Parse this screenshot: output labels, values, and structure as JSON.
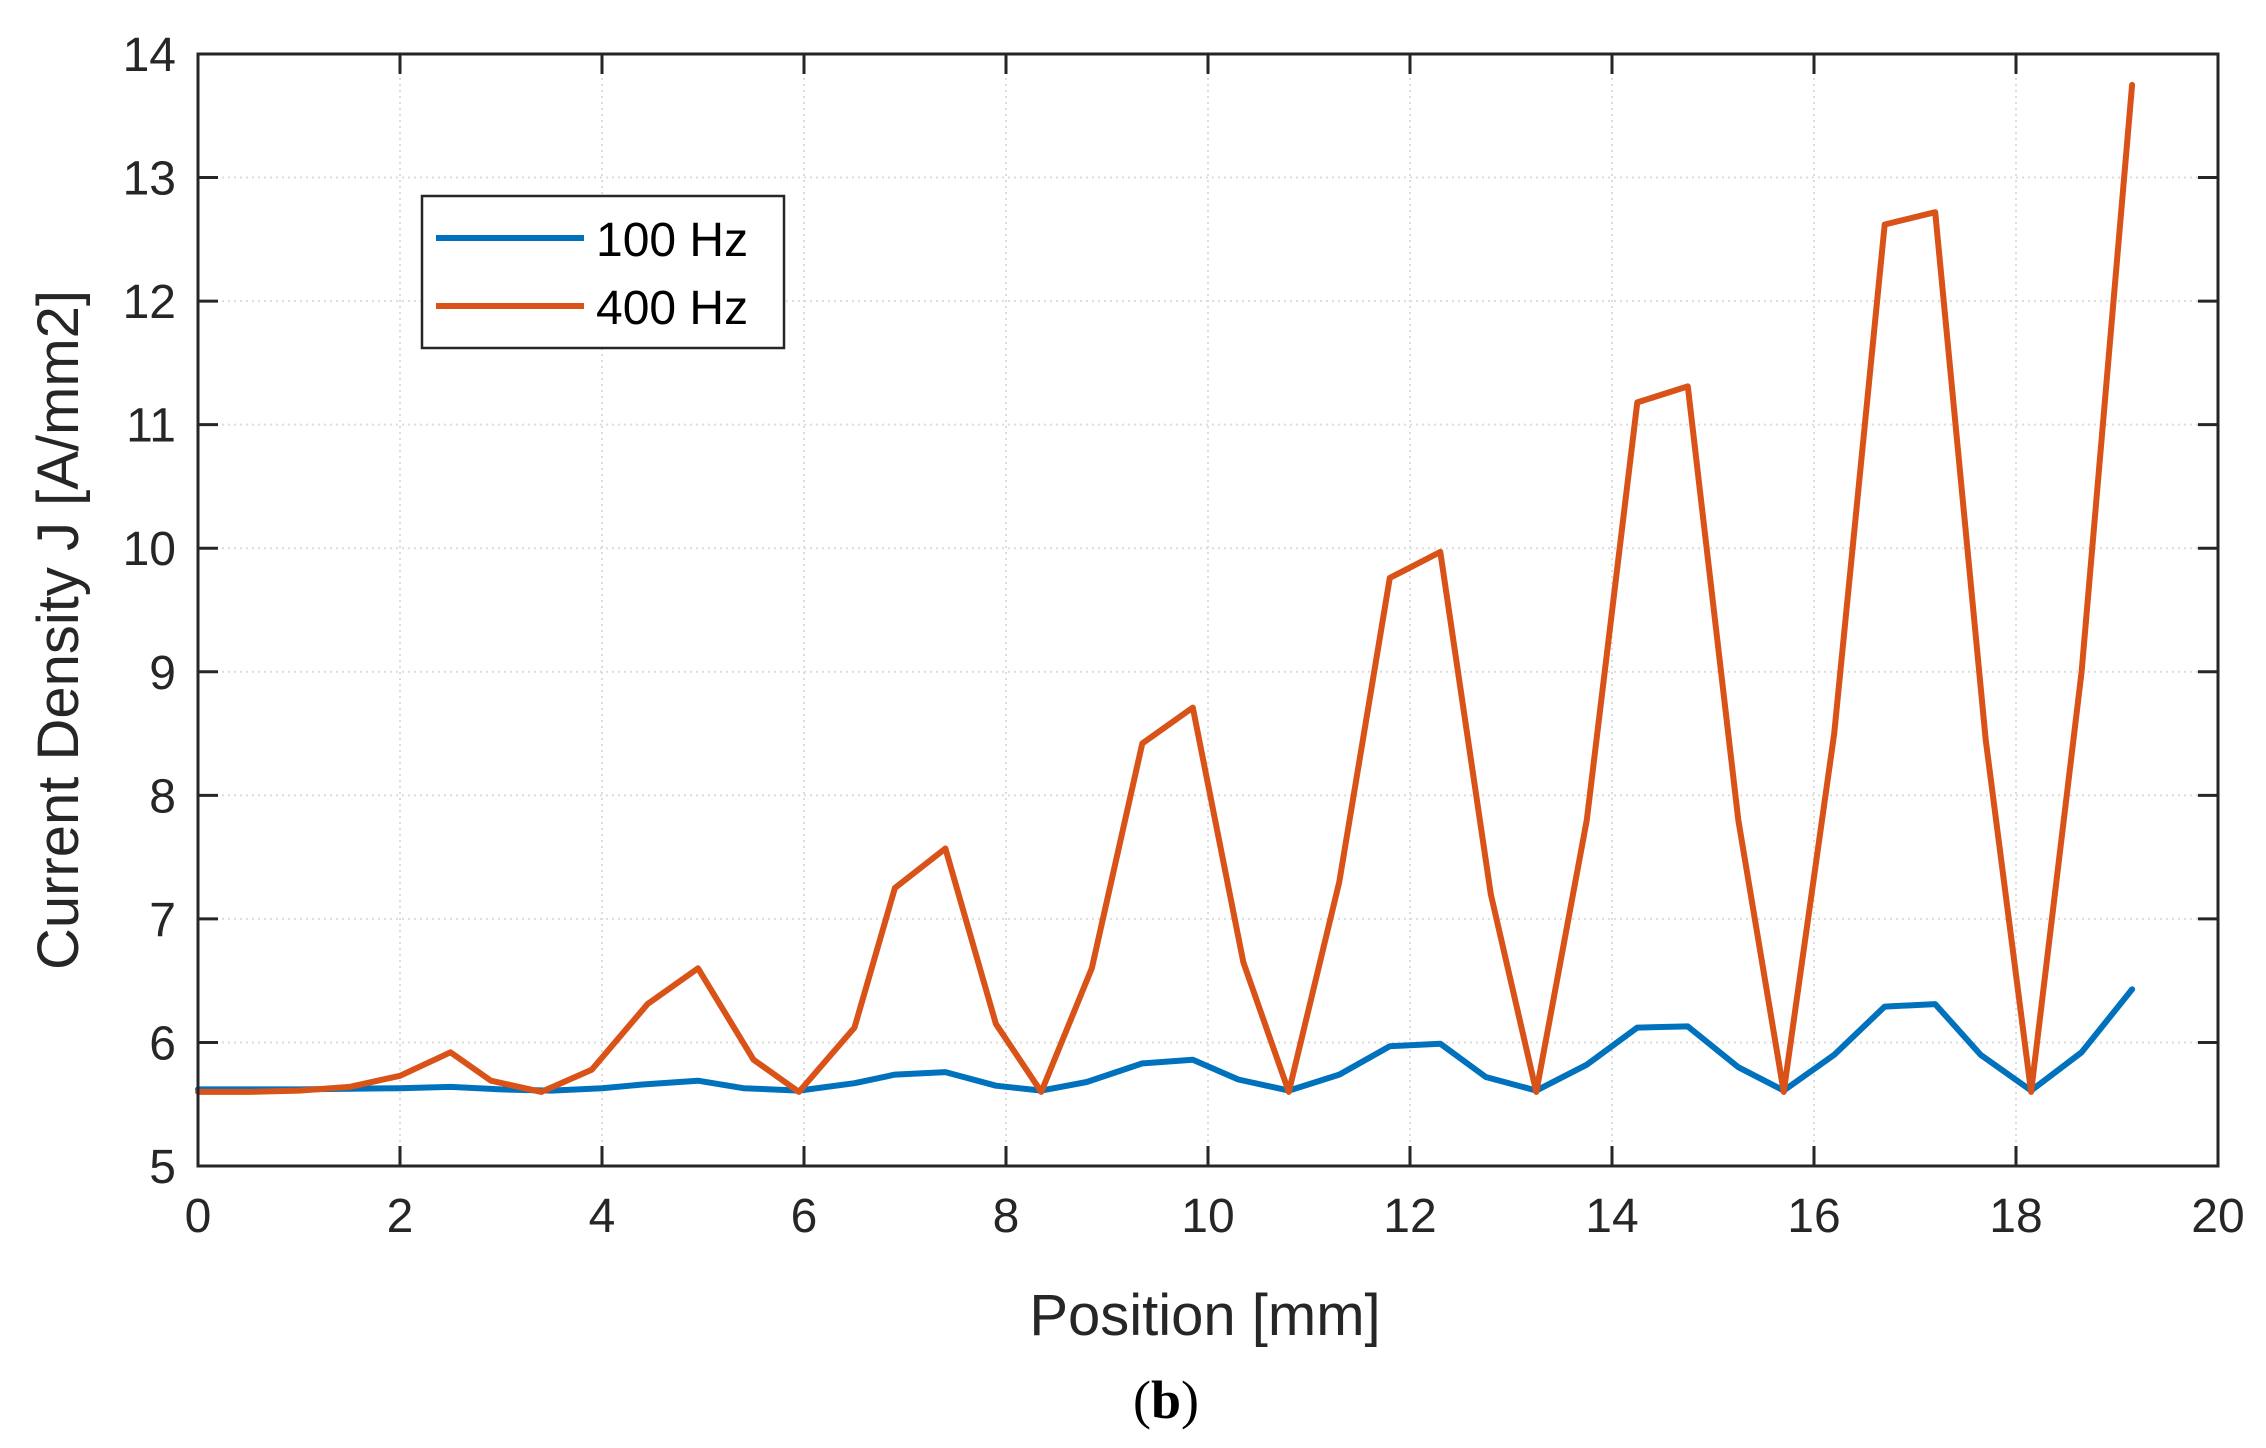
{
  "chart_data": {
    "type": "line",
    "title": "",
    "xlabel": "Position [mm]",
    "ylabel": "Current Density J [A/mm2]",
    "xlim": [
      0,
      20
    ],
    "ylim": [
      5,
      14
    ],
    "xticks": [
      "0",
      "2",
      "4",
      "6",
      "8",
      "10",
      "12",
      "14",
      "16",
      "18",
      "20"
    ],
    "yticks": [
      "5",
      "6",
      "7",
      "8",
      "9",
      "10",
      "11",
      "12",
      "13",
      "14"
    ],
    "grid": true,
    "legend_position": "top-left",
    "panel_label": {
      "open": "(",
      "letter": "b",
      "close": ")"
    },
    "series": [
      {
        "name": "100 Hz",
        "color": "#0072BD",
        "x": [
          0,
          1,
          2,
          2.5,
          3,
          3.5,
          4,
          4.4,
          4.95,
          5.4,
          5.95,
          6.5,
          6.9,
          7.4,
          7.9,
          8.35,
          8.8,
          9.35,
          9.85,
          10.3,
          10.8,
          11.3,
          11.8,
          12.3,
          12.75,
          13.25,
          13.75,
          14.25,
          14.75,
          15.25,
          15.7,
          16.2,
          16.7,
          17.2,
          17.65,
          18.15,
          18.65,
          19.15
        ],
        "y": [
          5.62,
          5.62,
          5.63,
          5.64,
          5.62,
          5.61,
          5.63,
          5.66,
          5.69,
          5.63,
          5.61,
          5.67,
          5.74,
          5.76,
          5.65,
          5.61,
          5.68,
          5.83,
          5.86,
          5.7,
          5.61,
          5.74,
          5.97,
          5.99,
          5.72,
          5.61,
          5.82,
          6.12,
          6.13,
          5.8,
          5.61,
          5.9,
          6.29,
          6.31,
          5.9,
          5.61,
          5.92,
          6.43
        ]
      },
      {
        "name": "400 Hz",
        "color": "#D95319",
        "x": [
          0,
          0.5,
          1,
          1.5,
          2,
          2.5,
          2.9,
          3.4,
          3.9,
          4.45,
          4.95,
          5.5,
          5.95,
          6.5,
          6.9,
          7.4,
          7.9,
          8.35,
          8.85,
          9.35,
          9.85,
          10.35,
          10.8,
          11.3,
          11.8,
          12.3,
          12.8,
          13.25,
          13.75,
          14.25,
          14.75,
          15.25,
          15.7,
          16.2,
          16.7,
          17.2,
          17.7,
          18.15,
          18.65,
          19.15
        ],
        "y": [
          5.6,
          5.6,
          5.61,
          5.64,
          5.73,
          5.92,
          5.69,
          5.6,
          5.78,
          6.31,
          6.6,
          5.86,
          5.6,
          6.12,
          7.25,
          7.57,
          6.15,
          5.6,
          6.6,
          8.42,
          8.71,
          6.65,
          5.6,
          7.3,
          9.76,
          9.97,
          7.2,
          5.6,
          7.8,
          11.18,
          11.31,
          7.8,
          5.6,
          8.5,
          12.62,
          12.72,
          8.45,
          5.6,
          9.0,
          13.75
        ]
      }
    ]
  }
}
